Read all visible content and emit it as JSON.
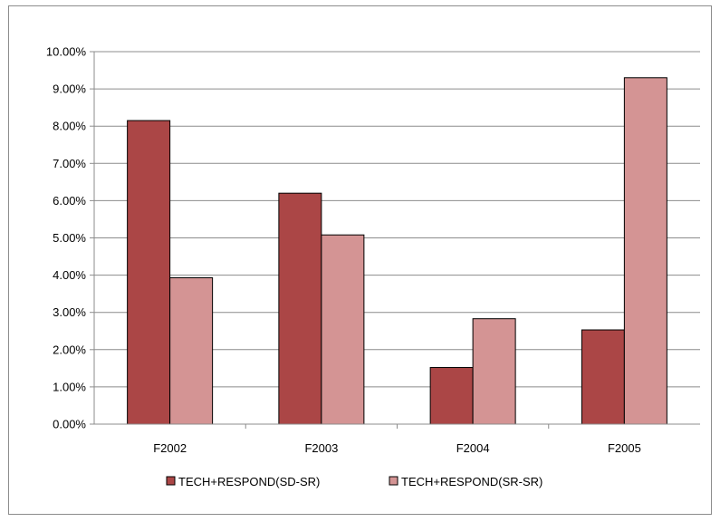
{
  "chart_data": {
    "type": "bar",
    "categories": [
      "F2002",
      "F2003",
      "F2004",
      "F2005"
    ],
    "series": [
      {
        "name": "TECH+RESPOND(SD-SR)",
        "color": "#ab4646",
        "values": [
          0.0815,
          0.062,
          0.0152,
          0.0253
        ]
      },
      {
        "name": "TECH+RESPOND(SR-SR)",
        "color": "#d49494",
        "values": [
          0.0393,
          0.0508,
          0.0283,
          0.093
        ]
      }
    ],
    "ylim": [
      0,
      0.1
    ],
    "y_ticks": [
      "0.00%",
      "1.00%",
      "2.00%",
      "3.00%",
      "4.00%",
      "5.00%",
      "6.00%",
      "7.00%",
      "8.00%",
      "9.00%",
      "10.00%"
    ],
    "grid": true,
    "legend_position": "bottom",
    "title": "",
    "xlabel": "",
    "ylabel": ""
  }
}
